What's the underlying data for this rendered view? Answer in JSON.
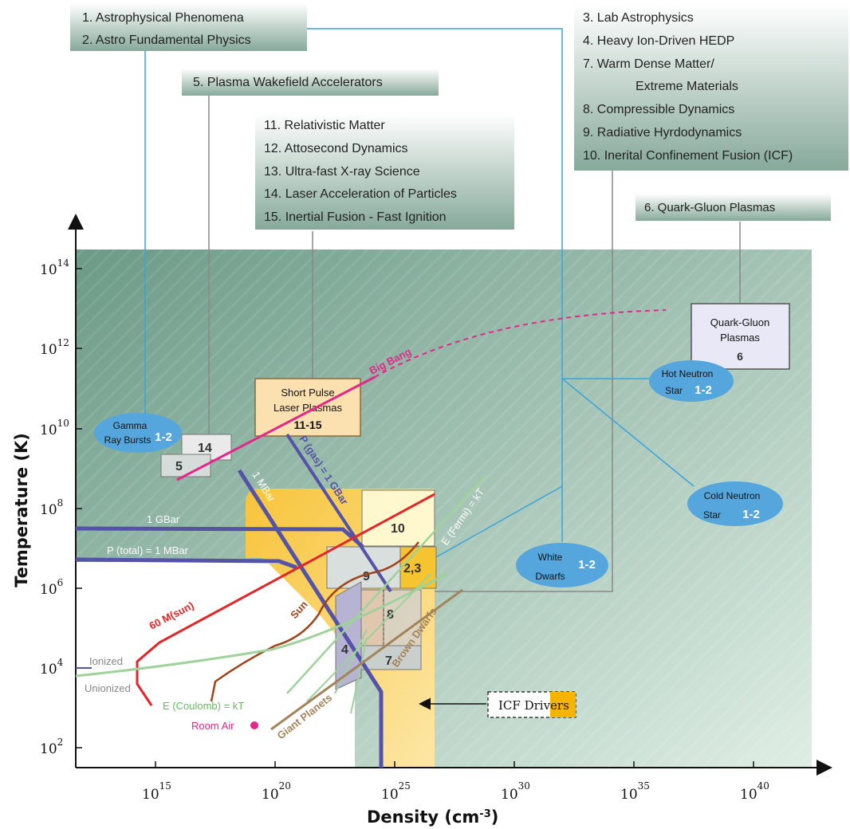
{
  "colors": {
    "bg_gradient_start": "#6b9a86",
    "bg_gradient_end": "#dfeee5",
    "label_box_top": "#ffffff",
    "label_box_bottom": "#86a99a",
    "connector_blue": "#3aa3dc",
    "connector_gray": "#888888",
    "bold_line": "#5553a7",
    "red_line": "#e3262a",
    "sun_line": "#a0441c",
    "green_line": "#9fd29a",
    "brown_line": "#a4845a",
    "big_bang": "#e2288a",
    "ellipse": "#55a6dd",
    "icf_orange": "#f5b400"
  },
  "x_axis": {
    "title": "Density (cm",
    "title_sup": "-3",
    "title_end": ")",
    "ticks": [
      {
        "base": "10",
        "exp": "15"
      },
      {
        "base": "10",
        "exp": "20"
      },
      {
        "base": "10",
        "exp": "25"
      },
      {
        "base": "10",
        "exp": "30"
      },
      {
        "base": "10",
        "exp": "35"
      },
      {
        "base": "10",
        "exp": "40"
      }
    ]
  },
  "y_axis": {
    "title": "Temperature (K)",
    "ticks": [
      {
        "base": "10",
        "exp": "2"
      },
      {
        "base": "10",
        "exp": "4"
      },
      {
        "base": "10",
        "exp": "6"
      },
      {
        "base": "10",
        "exp": "8"
      },
      {
        "base": "10",
        "exp": "10"
      },
      {
        "base": "10",
        "exp": "12"
      },
      {
        "base": "10",
        "exp": "14"
      }
    ]
  },
  "label_boxes": {
    "astro": [
      "1.  Astrophysical Phenomena",
      "2.  Astro Fundamental Physics"
    ],
    "wakefield": [
      "5.  Plasma Wakefield Accelerators"
    ],
    "relativistic": [
      "11.  Relativistic Matter",
      "12.  Attosecond Dynamics",
      "13.  Ultra-fast X-ray Science",
      "14.  Laser Acceleration of Particles",
      "15.  Inertial Fusion - Fast Ignition"
    ],
    "lab": [
      "3.  Lab Astrophysics",
      "4.  Heavy Ion-Driven HEDP",
      "7.  Warm Dense Matter/",
      "Extreme Materials",
      "8.  Compressible Dynamics",
      "9.  Radiative Hyrdodynamics",
      "10. Inerital Confinement Fusion (ICF)"
    ],
    "quark": [
      "6.  Quark-Gluon Plasmas"
    ]
  },
  "regions": {
    "short_pulse": [
      "Short Pulse",
      "Laser Plasmas",
      "11-15"
    ],
    "quark_gluon": [
      "Quark-Gluon",
      "Plasmas",
      "6"
    ],
    "box14": "14",
    "box5": "5",
    "box10": "10",
    "box9": "9",
    "box23": "2,3",
    "box8": "8",
    "box4": "4",
    "box7": "7",
    "icf_drivers": "ICF Drivers"
  },
  "ellipses": {
    "gamma": {
      "lines": [
        "Gamma",
        "Ray Bursts"
      ],
      "num": "1-2"
    },
    "hot_neutron": {
      "lines": [
        "Hot Neutron",
        "Star"
      ],
      "num": "1-2"
    },
    "cold_neutron": {
      "lines": [
        "Cold Neutron",
        "Star"
      ],
      "num": "1-2"
    },
    "white_dwarfs": {
      "lines": [
        "White",
        "Dwarfs"
      ],
      "num": "1-2"
    }
  },
  "curve_labels": {
    "big_bang": "Big Bang",
    "one_gbar": "1 GBar",
    "p_total": "P (total) = 1 MBar",
    "one_mbar": "1 MBar",
    "p_gas": "P (gas) = 1 GBar",
    "e_fermi": "E (Fermi) = kT",
    "sixty_msun": "60 M(sun)",
    "sun": "Sun",
    "brown_dwarfs": "Brown Dwarfs",
    "ionized": "Ionized",
    "unionized": "Unionized",
    "e_coulomb": "E (Coulomb) = kT",
    "room_air": "Room Air",
    "giant_planets": "Giant Planets"
  }
}
